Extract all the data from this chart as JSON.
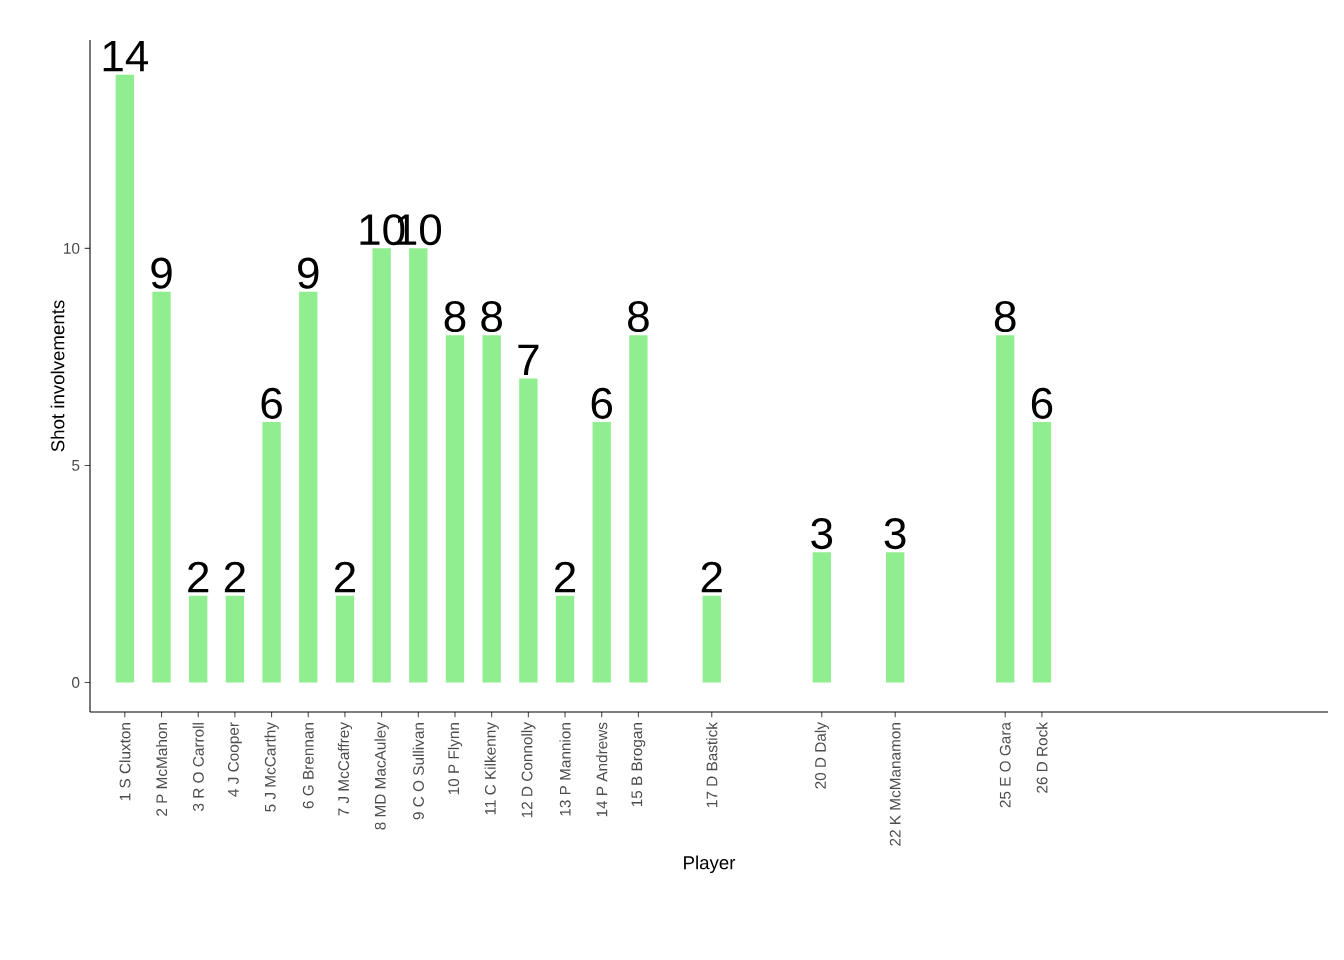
{
  "chart_data": {
    "type": "bar",
    "xlabel": "Player",
    "ylabel": "Shot involvements",
    "x": [
      1,
      2,
      3,
      4,
      5,
      6,
      7,
      8,
      9,
      10,
      11,
      12,
      13,
      14,
      15,
      17,
      20,
      22,
      25,
      26
    ],
    "values": [
      14,
      9,
      2,
      2,
      6,
      9,
      2,
      10,
      10,
      8,
      8,
      7,
      2,
      6,
      8,
      2,
      3,
      3,
      8,
      6
    ],
    "color": "#90ee90",
    "data_labels": true,
    "xlim": [
      0.05,
      33.8
    ],
    "ylim": [
      -0.68,
      14.8
    ],
    "yticks": [
      0,
      5,
      10
    ],
    "xticks": [
      {
        "value": 1,
        "label": "1 S Cluxton"
      },
      {
        "value": 2,
        "label": "2 P McMahon"
      },
      {
        "value": 3,
        "label": "3 R O Carroll"
      },
      {
        "value": 4,
        "label": "4 J Cooper"
      },
      {
        "value": 5,
        "label": "5 J McCarthy"
      },
      {
        "value": 6,
        "label": "6 G Brennan"
      },
      {
        "value": 7,
        "label": "7 J McCaffrey"
      },
      {
        "value": 8,
        "label": "8 MD MacAuley"
      },
      {
        "value": 9,
        "label": "9 C O Sullivan"
      },
      {
        "value": 10,
        "label": "10 P Flynn"
      },
      {
        "value": 11,
        "label": "11 C Kilkenny"
      },
      {
        "value": 12,
        "label": "12 D Connolly"
      },
      {
        "value": 13,
        "label": "13 P Mannion"
      },
      {
        "value": 14,
        "label": "14 P Andrews"
      },
      {
        "value": 15,
        "label": "15 B Brogan"
      },
      {
        "value": 17,
        "label": "17 D Bastick"
      },
      {
        "value": 20,
        "label": "20 D Daly"
      },
      {
        "value": 22,
        "label": "22 K McManamon"
      },
      {
        "value": 25,
        "label": "25 E O Gara"
      },
      {
        "value": 26,
        "label": "26 D Rock"
      }
    ],
    "grid": false
  }
}
